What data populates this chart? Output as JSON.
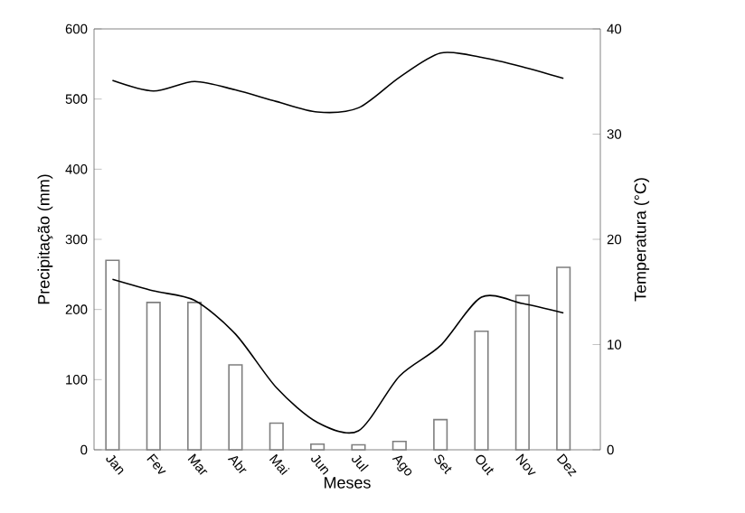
{
  "chart_data": {
    "type": "bar",
    "xlabel": "Meses",
    "ylabel": "Precipitação (mm)",
    "y2label": "Temperatura (°C)",
    "categories": [
      "Jan",
      "Fev",
      "Mar",
      "Abr",
      "Mai",
      "Jun",
      "Jul",
      "Ago",
      "Set",
      "Out",
      "Nov",
      "Dez"
    ],
    "ylim": [
      0,
      600
    ],
    "yticks": [
      0,
      100,
      200,
      300,
      400,
      500,
      600
    ],
    "y2lim": [
      0,
      40
    ],
    "y2ticks": [
      0,
      10,
      20,
      30,
      40
    ],
    "series": [
      {
        "color": "#7f7f7f",
        "values": [
          270,
          210,
          210,
          121,
          38,
          8,
          7,
          12,
          43,
          169,
          220,
          260
        ]
      },
      {
        "type": "line",
        "axis": "y2",
        "color": "#000000",
        "values": [
          35.1,
          34.1,
          35.0,
          34.2,
          33.1,
          32.1,
          32.5,
          35.4,
          37.7,
          37.3,
          36.4,
          35.3
        ]
      },
      {
        "type": "line",
        "axis": "y2",
        "color": "#000000",
        "values": [
          16.2,
          15.1,
          14.2,
          11.0,
          5.9,
          2.6,
          1.8,
          7.0,
          9.9,
          14.5,
          13.9,
          13.0
        ]
      }
    ]
  }
}
